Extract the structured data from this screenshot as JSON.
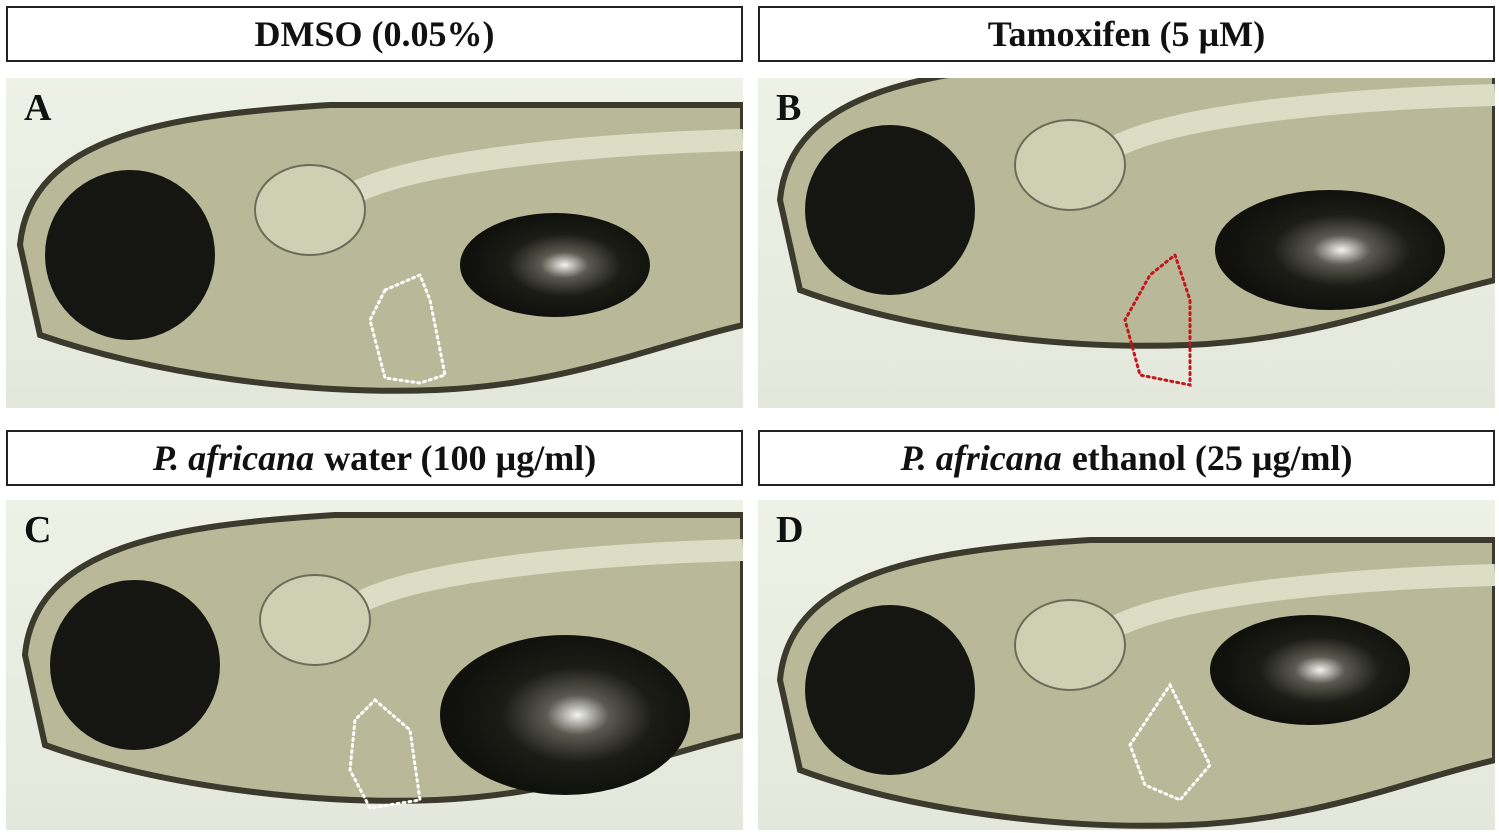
{
  "panels": [
    {
      "title": "DMSO (0.05%)",
      "letter": "A"
    },
    {
      "title": "Tamoxifen (5 µM)",
      "letter": "B"
    },
    {
      "title_italic": "P. africana",
      "title": "water (100 µg/ml)",
      "letter": "C"
    },
    {
      "title_italic": "P. africana",
      "title": "ethanol (25 µg/ml)",
      "letter": "D"
    }
  ]
}
